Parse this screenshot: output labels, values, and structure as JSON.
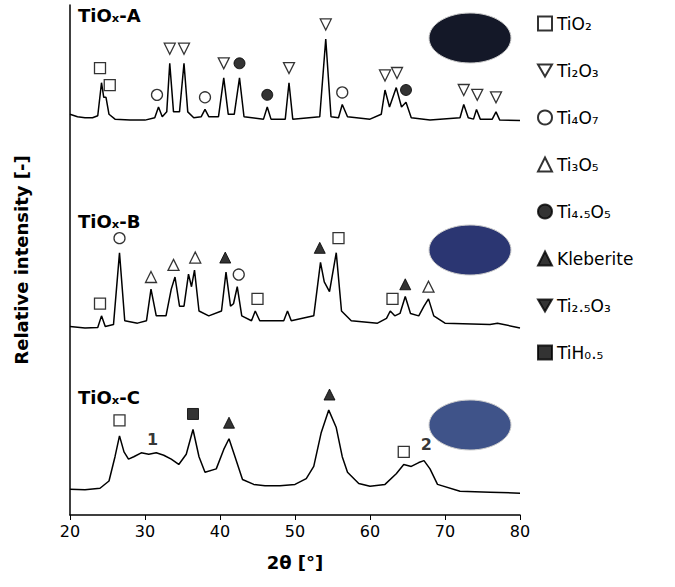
{
  "chart_data": {
    "type": "line",
    "x_label": "2θ [°]",
    "y_label": "Relative intensity [-]",
    "xlim": [
      20,
      80
    ],
    "xticks": [
      20,
      30,
      40,
      50,
      60,
      70,
      80
    ],
    "ylim": [
      0,
      105
    ],
    "tick_labels": "x",
    "grid": false,
    "legend": "right",
    "series": [
      {
        "name": "TiOₓ-A",
        "color": "#000000",
        "x": [
          20,
          21,
          22,
          23,
          23.7,
          24.2,
          24.5,
          24.8,
          25.2,
          26,
          28,
          30,
          31.3,
          31.8,
          32.3,
          32.9,
          33.3,
          33.8,
          34.6,
          35.2,
          35.7,
          36.5,
          37.5,
          38,
          38.5,
          39.8,
          40.5,
          41.1,
          41.9,
          42.6,
          43.2,
          45.8,
          46.3,
          46.8,
          48.7,
          49.2,
          49.7,
          53.3,
          54.1,
          54.8,
          55.8,
          56.3,
          57,
          60,
          61.5,
          62,
          62.6,
          63.5,
          64.2,
          64.8,
          65.5,
          68,
          72,
          72.5,
          73.1,
          73.8,
          74.2,
          74.7,
          76.3,
          76.8,
          77.3,
          80
        ],
        "values": [
          82.5,
          82,
          81.8,
          81.8,
          82.2,
          89,
          86,
          86,
          82.5,
          81.5,
          81.3,
          81.3,
          81.8,
          84,
          82,
          83,
          93,
          83,
          83,
          93,
          83,
          81.8,
          82,
          83.5,
          82,
          82,
          90,
          82.5,
          82.5,
          90,
          82,
          81.5,
          84,
          81.5,
          81.5,
          89,
          81.5,
          82,
          98,
          82,
          81.8,
          84.5,
          82,
          81.5,
          82.5,
          87.5,
          84,
          88,
          84,
          85,
          81.8,
          81.3,
          81.8,
          84.5,
          81.8,
          81.5,
          83.5,
          81.5,
          81.5,
          83,
          81.3,
          81.2
        ]
      },
      {
        "name": "TiOₓ-B",
        "color": "#000000",
        "x": [
          20,
          22,
          23.7,
          24.2,
          24.7,
          25.8,
          26.6,
          27.3,
          29,
          30.2,
          30.8,
          31.5,
          32.8,
          33.5,
          34,
          34.6,
          35.2,
          35.8,
          36.2,
          36.6,
          37.2,
          38.5,
          40.2,
          40.8,
          41.4,
          41.8,
          42.3,
          42.9,
          44.2,
          44.7,
          45.3,
          48.5,
          49,
          49.5,
          52.5,
          53.4,
          53.9,
          54.6,
          55.5,
          56.2,
          57.5,
          61,
          62.2,
          62.7,
          63.3,
          64,
          64.7,
          65.4,
          66.5,
          67.2,
          67.8,
          68.5,
          70,
          76,
          77,
          80
        ],
        "values": [
          38.8,
          38.5,
          38.6,
          41,
          38.8,
          39.2,
          54,
          40,
          39.5,
          40,
          46.5,
          41,
          41,
          46.5,
          49,
          43,
          43,
          49.6,
          47,
          50.4,
          42,
          41,
          42,
          50,
          43,
          43.5,
          47,
          41,
          40,
          42,
          40,
          40,
          42,
          40,
          41,
          52,
          48,
          46,
          54,
          42,
          40,
          39.5,
          40.5,
          42,
          41,
          41.5,
          45,
          41.5,
          41,
          43,
          44.5,
          41,
          39.5,
          39.2,
          39.5,
          38.5
        ]
      },
      {
        "name": "TiOₓ-C",
        "color": "#000000",
        "x": [
          20,
          22,
          24,
          25.2,
          26,
          26.6,
          27.2,
          27.8,
          28.5,
          29.5,
          30.5,
          31.5,
          32.5,
          33.5,
          34.5,
          35.5,
          36.4,
          37.2,
          38,
          39.5,
          40.5,
          41.2,
          42,
          43,
          44.5,
          46,
          48,
          50,
          51.5,
          52.5,
          53.5,
          54.5,
          55.5,
          56.3,
          57,
          58.5,
          60,
          62,
          63.5,
          64.5,
          65.5,
          66.5,
          67.2,
          68,
          69,
          72,
          76,
          80
        ],
        "values": [
          5.3,
          5.2,
          5.5,
          7,
          12,
          16.3,
          13,
          11.5,
          12,
          12.8,
          12.5,
          12.8,
          12.3,
          11.5,
          10.4,
          12.5,
          17.6,
          12,
          8.8,
          9.5,
          13.5,
          15.7,
          12,
          7.3,
          6.3,
          6,
          6,
          6.3,
          7.5,
          10,
          17,
          21.6,
          18,
          12,
          8.8,
          6.5,
          5.9,
          6.3,
          8.5,
          10.4,
          10,
          10.8,
          11.2,
          9.5,
          6.3,
          4.9,
          4.7,
          4.5
        ]
      }
    ],
    "phases": [
      {
        "name": "TiO₂",
        "marker": "open-square",
        "color": "#000000",
        "x": [
          24.0,
          25.3,
          24.0,
          45.0,
          55.8,
          63.0,
          26.6,
          64.5
        ],
        "values": [
          92,
          88.5,
          43.5,
          44.5,
          57,
          44.5,
          19.5,
          13
        ]
      },
      {
        "name": "Ti₂O₃",
        "marker": "open-triangle-down",
        "color": "#000000",
        "x": [
          33.3,
          35.2,
          40.5,
          49.2,
          54.1,
          62.0,
          63.6,
          72.5,
          74.3,
          76.8
        ],
        "values": [
          96,
          96,
          93,
          92,
          101,
          90.5,
          91,
          87.5,
          86.5,
          86
        ]
      },
      {
        "name": "Ti₄O₇",
        "marker": "open-circle",
        "color": "#000000",
        "x": [
          31.6,
          38.0,
          56.3,
          26.6,
          42.5
        ],
        "values": [
          86.5,
          86,
          87,
          57,
          49.5
        ]
      },
      {
        "name": "Ti₃O₅",
        "marker": "open-triangle",
        "color": "#000000",
        "x": [
          30.8,
          33.8,
          36.7,
          67.8
        ],
        "values": [
          49,
          51.5,
          53,
          47
        ]
      },
      {
        "name": "Ti₄.₅O₅",
        "marker": "filled-circle",
        "color": "#000000",
        "x": [
          42.6,
          46.3,
          64.8
        ],
        "values": [
          93,
          86.5,
          87.5
        ]
      },
      {
        "name": "Kleberite",
        "marker": "filled-triangle",
        "color": "#000000",
        "x": [
          40.7,
          53.3,
          64.7,
          41.2,
          54.6
        ],
        "values": [
          53,
          55,
          47.5,
          19,
          24.8
        ]
      },
      {
        "name": "Ti₂.₅O₃",
        "marker": "filled-triangle-down",
        "color": "#000000",
        "x": [],
        "values": []
      },
      {
        "name": "TiH₀.₅",
        "marker": "filled-square",
        "color": "#000000",
        "x": [
          36.4
        ],
        "values": [
          20.8
        ]
      }
    ],
    "annotations": [
      {
        "text": "1",
        "x": 31,
        "y": 15.5
      },
      {
        "text": "2",
        "x": 67.5,
        "y": 14.5
      }
    ]
  }
}
